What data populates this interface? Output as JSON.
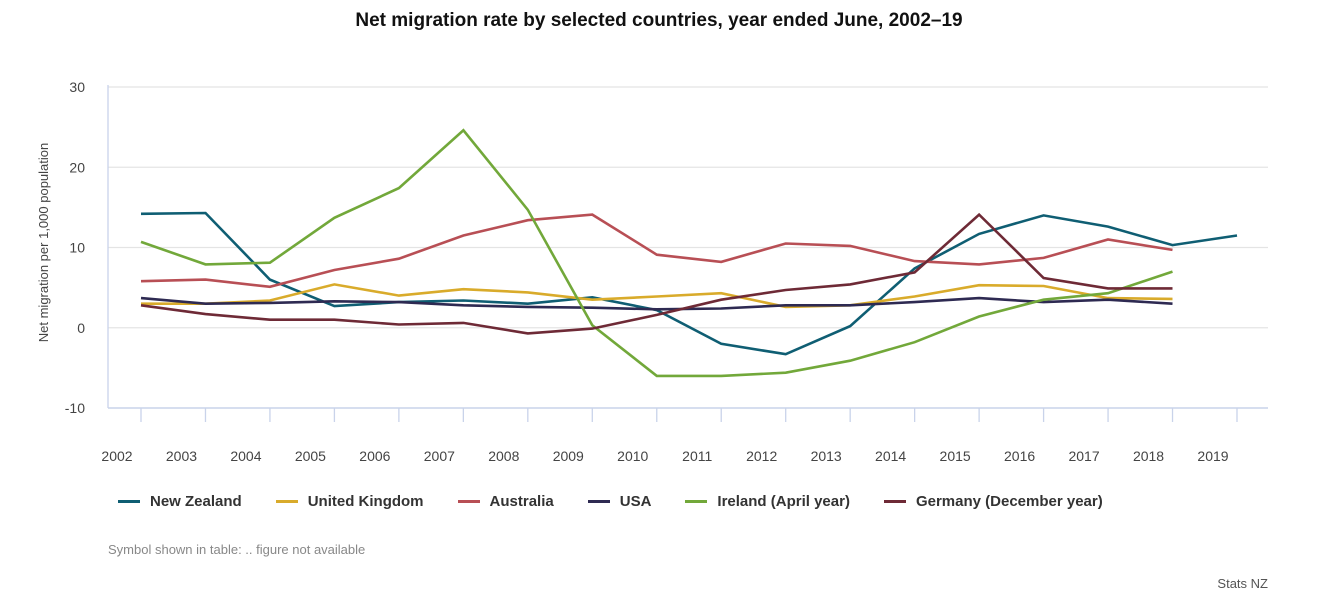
{
  "chart_data": {
    "type": "line",
    "title": "Net migration rate by selected countries, year ended June, 2002–19",
    "xlabel": "",
    "ylabel": "Net migration per 1,000 population",
    "ylim": [
      -10,
      30
    ],
    "yticks": [
      -10,
      0,
      10,
      20,
      30
    ],
    "x": [
      2002,
      2003,
      2004,
      2005,
      2006,
      2007,
      2008,
      2009,
      2010,
      2011,
      2012,
      2013,
      2014,
      2015,
      2016,
      2017,
      2018,
      2019
    ],
    "grid": true,
    "legend_position": "bottom",
    "series": [
      {
        "name": "New Zealand",
        "color": "#0f5e73",
        "values": [
          14.2,
          14.3,
          6.0,
          2.7,
          3.2,
          3.4,
          3.0,
          3.8,
          2.2,
          -2.0,
          -3.3,
          0.2,
          7.4,
          11.7,
          14.0,
          12.6,
          10.3,
          11.5
        ]
      },
      {
        "name": "United Kingdom",
        "color": "#d9ab2b",
        "values": [
          3.0,
          3.0,
          3.4,
          5.4,
          4.0,
          4.8,
          4.4,
          3.5,
          3.9,
          4.3,
          2.6,
          2.8,
          3.9,
          5.3,
          5.2,
          3.7,
          3.6,
          null
        ]
      },
      {
        "name": "Australia",
        "color": "#b84f55",
        "values": [
          5.8,
          6.0,
          5.1,
          7.2,
          8.6,
          11.5,
          13.4,
          14.1,
          9.1,
          8.2,
          10.5,
          10.2,
          8.3,
          7.9,
          8.7,
          11.0,
          9.7,
          null
        ]
      },
      {
        "name": "USA",
        "color": "#2e2a52",
        "values": [
          3.7,
          3.0,
          3.1,
          3.3,
          3.2,
          2.8,
          2.6,
          2.5,
          2.3,
          2.4,
          2.8,
          2.8,
          3.2,
          3.7,
          3.2,
          3.5,
          3.0,
          null
        ]
      },
      {
        "name": "Ireland (April year)",
        "color": "#72a83a",
        "values": [
          10.7,
          7.9,
          8.1,
          13.7,
          17.4,
          24.6,
          14.7,
          0.3,
          -6.0,
          -6.0,
          -5.6,
          -4.1,
          -1.8,
          1.4,
          3.5,
          4.3,
          7.0,
          null
        ]
      },
      {
        "name": "Germany (December year)",
        "color": "#6e2a36",
        "values": [
          2.8,
          1.7,
          1.0,
          1.0,
          0.4,
          0.6,
          -0.7,
          -0.1,
          1.6,
          3.5,
          4.7,
          5.4,
          6.9,
          14.1,
          6.2,
          4.9,
          4.9,
          null
        ]
      }
    ]
  },
  "note": "Symbol shown in table: .. figure not available",
  "source": "Stats NZ"
}
